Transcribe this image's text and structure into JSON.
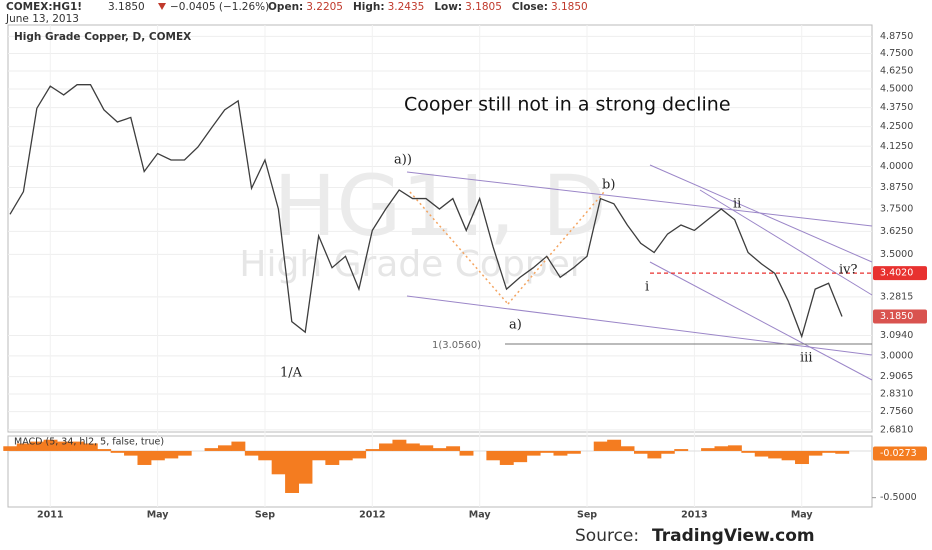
{
  "header": {
    "symbol": "COMEX:HG1!",
    "price": "3.1850",
    "change": "−0.0405 (−1.26%)",
    "fields": [
      {
        "label": "Open:",
        "value": "3.2205"
      },
      {
        "label": "High:",
        "value": "3.2435"
      },
      {
        "label": "Low:",
        "value": "3.1805"
      },
      {
        "label": "Close:",
        "value": "3.1850"
      }
    ],
    "date": "June 13, 2013"
  },
  "chart_data": [
    {
      "type": "line",
      "title": "High Grade Copper, D, COMEX",
      "watermark": [
        "HG1!, D",
        "High Grade Copper"
      ],
      "annotation": "Cooper still not in a strong decline",
      "wave_labels": [
        "a))",
        "b)",
        "a)",
        "1/A",
        "i",
        "ii",
        "iii",
        "iv?"
      ],
      "fib_label": "1(3.0560)",
      "categories": [
        null,
        null,
        null,
        "2011",
        null,
        null,
        null,
        null,
        null,
        null,
        null,
        "May",
        null,
        null,
        null,
        null,
        null,
        null,
        null,
        "Sep",
        null,
        null,
        null,
        null,
        null,
        null,
        null,
        "2012",
        null,
        null,
        null,
        null,
        null,
        null,
        null,
        "May",
        null,
        null,
        null,
        null,
        null,
        null,
        null,
        "Sep",
        null,
        null,
        null,
        null,
        null,
        null,
        null,
        "2013",
        null,
        null,
        null,
        null,
        null,
        null,
        null,
        "May",
        null,
        null,
        null
      ],
      "values": [
        3.72,
        3.85,
        4.37,
        4.52,
        4.46,
        4.53,
        4.53,
        4.36,
        4.28,
        4.31,
        3.97,
        4.08,
        4.04,
        4.04,
        4.12,
        4.24,
        4.36,
        4.42,
        3.87,
        4.04,
        3.75,
        3.16,
        3.11,
        3.6,
        3.43,
        3.49,
        3.32,
        3.63,
        3.75,
        3.86,
        3.81,
        3.81,
        3.75,
        3.81,
        3.63,
        3.81,
        3.54,
        3.32,
        3.38,
        3.43,
        3.49,
        3.38,
        3.43,
        3.49,
        3.81,
        3.78,
        3.66,
        3.56,
        3.51,
        3.61,
        3.66,
        3.63,
        3.69,
        3.75,
        3.69,
        3.51,
        3.45,
        3.4,
        3.26,
        3.09,
        3.32,
        3.35,
        3.185
      ],
      "color": "#3d3d3d",
      "log_scale": true,
      "grid": true,
      "ylim": [
        2.66,
        4.96
      ],
      "yticks": [
        {
          "value": 4.875,
          "label": "4.8750"
        },
        {
          "value": 4.75,
          "label": "4.7500"
        },
        {
          "value": 4.625,
          "label": "4.6250"
        },
        {
          "value": 4.5,
          "label": "4.5000"
        },
        {
          "value": 4.375,
          "label": "4.3750"
        },
        {
          "value": 4.25,
          "label": "4.2500"
        },
        {
          "value": 4.125,
          "label": "4.1250"
        },
        {
          "value": 4,
          "label": "4.0000"
        },
        {
          "value": 3.875,
          "label": "3.8750"
        },
        {
          "value": 3.75,
          "label": "3.7500"
        },
        {
          "value": 3.625,
          "label": "3.6250"
        },
        {
          "value": 3.5,
          "label": "3.5000"
        },
        {
          "value": 3.2815,
          "label": "3.2815"
        },
        {
          "value": 3.094,
          "label": "3.0940"
        },
        {
          "value": 3,
          "label": "3.0000"
        },
        {
          "value": 2.9065,
          "label": "2.9065"
        },
        {
          "value": 2.831,
          "label": "2.8310"
        },
        {
          "value": 2.756,
          "label": "2.7560"
        },
        {
          "value": 2.681,
          "label": "2.6810"
        }
      ],
      "price_marks": [
        {
          "value": 3.402,
          "label": "3.4020",
          "color": "#e8312f"
        },
        {
          "value": 3.185,
          "label": "3.1850",
          "color": "#d9534f"
        }
      ]
    },
    {
      "type": "bar",
      "title": "MACD (5, 34, hl2, 5, false, true)",
      "values": [
        0.05,
        0.08,
        0.1,
        0.12,
        0.1,
        0.1,
        0.08,
        0.02,
        -0.02,
        -0.05,
        -0.15,
        -0.1,
        -0.08,
        -0.05,
        0.0,
        0.03,
        0.06,
        0.1,
        -0.05,
        -0.1,
        -0.25,
        -0.45,
        -0.35,
        -0.1,
        -0.15,
        -0.1,
        -0.08,
        0.02,
        0.08,
        0.12,
        0.08,
        0.06,
        0.03,
        0.05,
        -0.05,
        0.0,
        -0.1,
        -0.15,
        -0.12,
        -0.05,
        -0.02,
        -0.05,
        -0.03,
        0.0,
        0.1,
        0.12,
        0.05,
        -0.03,
        -0.08,
        -0.03,
        0.02,
        0.0,
        0.03,
        0.05,
        0.06,
        -0.02,
        -0.06,
        -0.08,
        -0.1,
        -0.14,
        -0.05,
        -0.02,
        -0.03
      ],
      "color": "#f47c20",
      "ylim": [
        -0.6,
        0.16
      ],
      "yticks": [
        {
          "value": -0.5,
          "label": "-0.5000"
        }
      ],
      "price_marks": [
        {
          "value": -0.0273,
          "label": "-0.0273",
          "color": "#f47c20"
        }
      ]
    }
  ],
  "source_label": "Source:",
  "source_site": "TradingView.com"
}
